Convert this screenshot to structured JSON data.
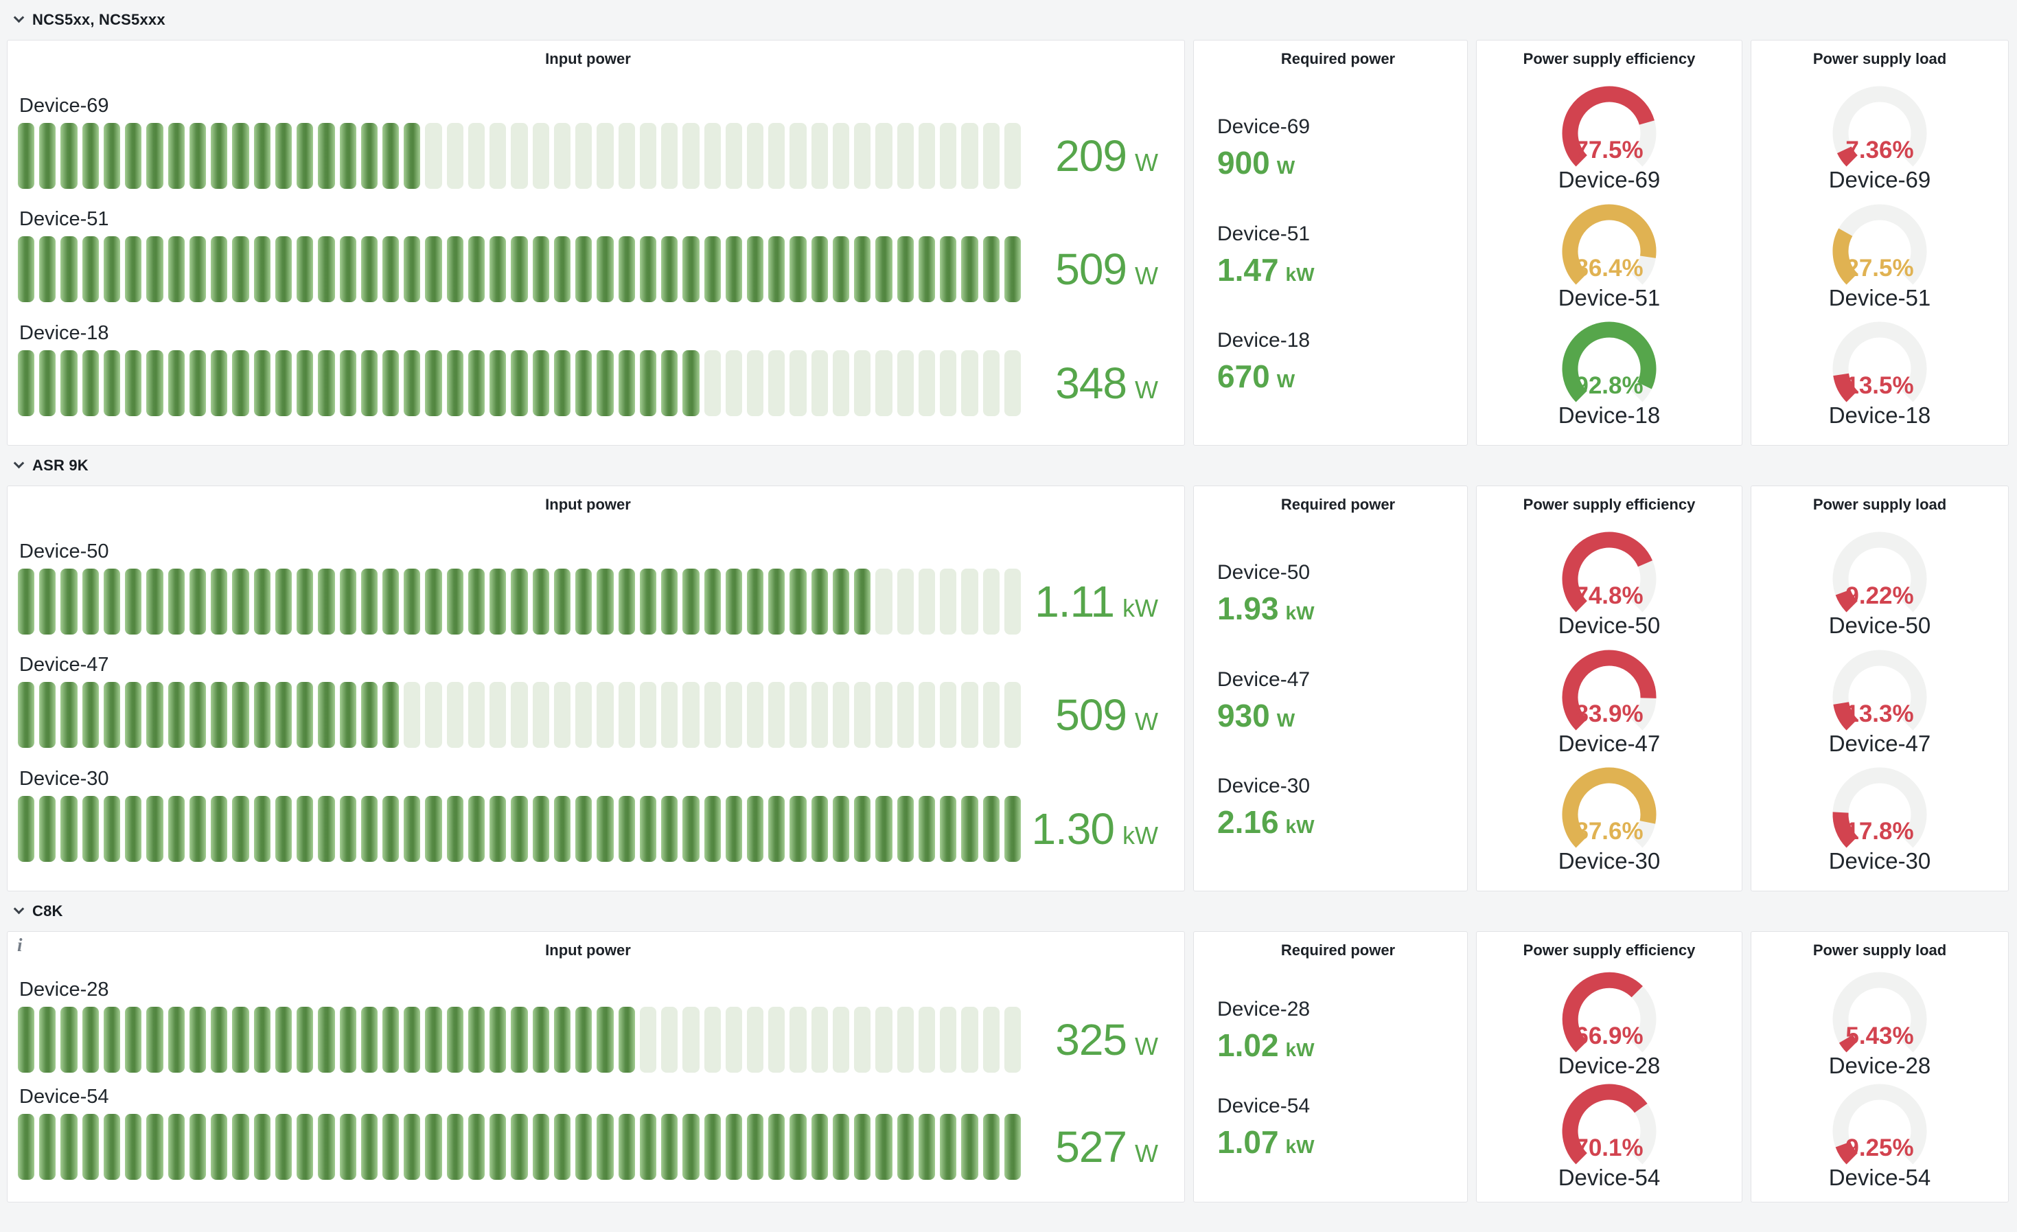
{
  "page": {
    "background": "#f4f5f6"
  },
  "icons": {
    "info": "i"
  },
  "panel_titles": {
    "input": "Input power",
    "required": "Required power",
    "efficiency": "Power supply efficiency",
    "load": "Power supply load"
  },
  "colors": {
    "green": "#56a64b",
    "red": "#d2434f",
    "yellow": "#e0b252",
    "gauge_track": "#f1f2f1",
    "bar_cell_empty": "#e6eee1",
    "bar_cell_fill_dark": "#568a45",
    "bar_cell_fill_light": "#a3cd93",
    "text_dark": "#20262c"
  },
  "sections": [
    {
      "title": "NCS5xx, NCS5xxx",
      "info_icon": false,
      "input_max_w": 509,
      "devices": [
        {
          "name": "Device-69",
          "input": {
            "value": "209",
            "unit": "W",
            "watts": 209
          },
          "required": {
            "value": "900",
            "unit": "W"
          },
          "efficiency": {
            "label": "77.5%",
            "pct": 77.5,
            "color": "red"
          },
          "load": {
            "label": "7.36%",
            "pct": 7.36,
            "color": "red"
          }
        },
        {
          "name": "Device-51",
          "input": {
            "value": "509",
            "unit": "W",
            "watts": 509
          },
          "required": {
            "value": "1.47",
            "unit": "kW"
          },
          "efficiency": {
            "label": "86.4%",
            "pct": 86.4,
            "color": "yellow"
          },
          "load": {
            "label": "27.5%",
            "pct": 27.5,
            "color": "yellow"
          }
        },
        {
          "name": "Device-18",
          "input": {
            "value": "348",
            "unit": "W",
            "watts": 348
          },
          "required": {
            "value": "670",
            "unit": "W"
          },
          "efficiency": {
            "label": "92.8%",
            "pct": 92.8,
            "color": "green"
          },
          "load": {
            "label": "13.5%",
            "pct": 13.5,
            "color": "red"
          }
        }
      ]
    },
    {
      "title": "ASR 9K",
      "info_icon": false,
      "input_max_w": 1300,
      "devices": [
        {
          "name": "Device-50",
          "input": {
            "value": "1.11",
            "unit": "kW",
            "watts": 1110
          },
          "required": {
            "value": "1.93",
            "unit": "kW"
          },
          "efficiency": {
            "label": "74.8%",
            "pct": 74.8,
            "color": "red"
          },
          "load": {
            "label": "9.22%",
            "pct": 9.22,
            "color": "red"
          }
        },
        {
          "name": "Device-47",
          "input": {
            "value": "509",
            "unit": "W",
            "watts": 509
          },
          "required": {
            "value": "930",
            "unit": "W"
          },
          "efficiency": {
            "label": "83.9%",
            "pct": 83.9,
            "color": "red"
          },
          "load": {
            "label": "13.3%",
            "pct": 13.3,
            "color": "red"
          }
        },
        {
          "name": "Device-30",
          "input": {
            "value": "1.30",
            "unit": "kW",
            "watts": 1300
          },
          "required": {
            "value": "2.16",
            "unit": "kW"
          },
          "efficiency": {
            "label": "87.6%",
            "pct": 87.6,
            "color": "yellow"
          },
          "load": {
            "label": "17.8%",
            "pct": 17.8,
            "color": "red"
          }
        }
      ]
    },
    {
      "title": "C8K",
      "info_icon": true,
      "input_max_w": 527,
      "devices": [
        {
          "name": "Device-28",
          "input": {
            "value": "325",
            "unit": "W",
            "watts": 325
          },
          "required": {
            "value": "1.02",
            "unit": "kW"
          },
          "efficiency": {
            "label": "66.9%",
            "pct": 66.9,
            "color": "red"
          },
          "load": {
            "label": "5.43%",
            "pct": 5.43,
            "color": "red"
          }
        },
        {
          "name": "Device-54",
          "input": {
            "value": "527",
            "unit": "W",
            "watts": 527
          },
          "required": {
            "value": "1.07",
            "unit": "kW"
          },
          "efficiency": {
            "label": "70.1%",
            "pct": 70.1,
            "color": "red"
          },
          "load": {
            "label": "9.25%",
            "pct": 9.25,
            "color": "red"
          }
        }
      ]
    }
  ],
  "chart_data": [
    {
      "section": "NCS5xx, NCS5xxx",
      "type": "bar",
      "categories": [
        "Device-69",
        "Device-51",
        "Device-18"
      ],
      "series": [
        {
          "name": "Input power (W)",
          "values": [
            209,
            509,
            348
          ]
        },
        {
          "name": "Required power (W)",
          "values": [
            900,
            1470,
            670
          ]
        },
        {
          "name": "Power supply efficiency (%)",
          "values": [
            77.5,
            86.4,
            92.8
          ]
        },
        {
          "name": "Power supply load (%)",
          "values": [
            7.36,
            27.5,
            13.5
          ]
        }
      ]
    },
    {
      "section": "ASR 9K",
      "type": "bar",
      "categories": [
        "Device-50",
        "Device-47",
        "Device-30"
      ],
      "series": [
        {
          "name": "Input power (W)",
          "values": [
            1110,
            509,
            1300
          ]
        },
        {
          "name": "Required power (W)",
          "values": [
            1930,
            930,
            2160
          ]
        },
        {
          "name": "Power supply efficiency (%)",
          "values": [
            74.8,
            83.9,
            87.6
          ]
        },
        {
          "name": "Power supply load (%)",
          "values": [
            9.22,
            13.3,
            17.8
          ]
        }
      ]
    },
    {
      "section": "C8K",
      "type": "bar",
      "categories": [
        "Device-28",
        "Device-54"
      ],
      "series": [
        {
          "name": "Input power (W)",
          "values": [
            325,
            527
          ]
        },
        {
          "name": "Required power (W)",
          "values": [
            1020,
            1070
          ]
        },
        {
          "name": "Power supply efficiency (%)",
          "values": [
            66.9,
            70.1
          ]
        },
        {
          "name": "Power supply load (%)",
          "values": [
            5.43,
            9.25
          ]
        }
      ]
    }
  ]
}
